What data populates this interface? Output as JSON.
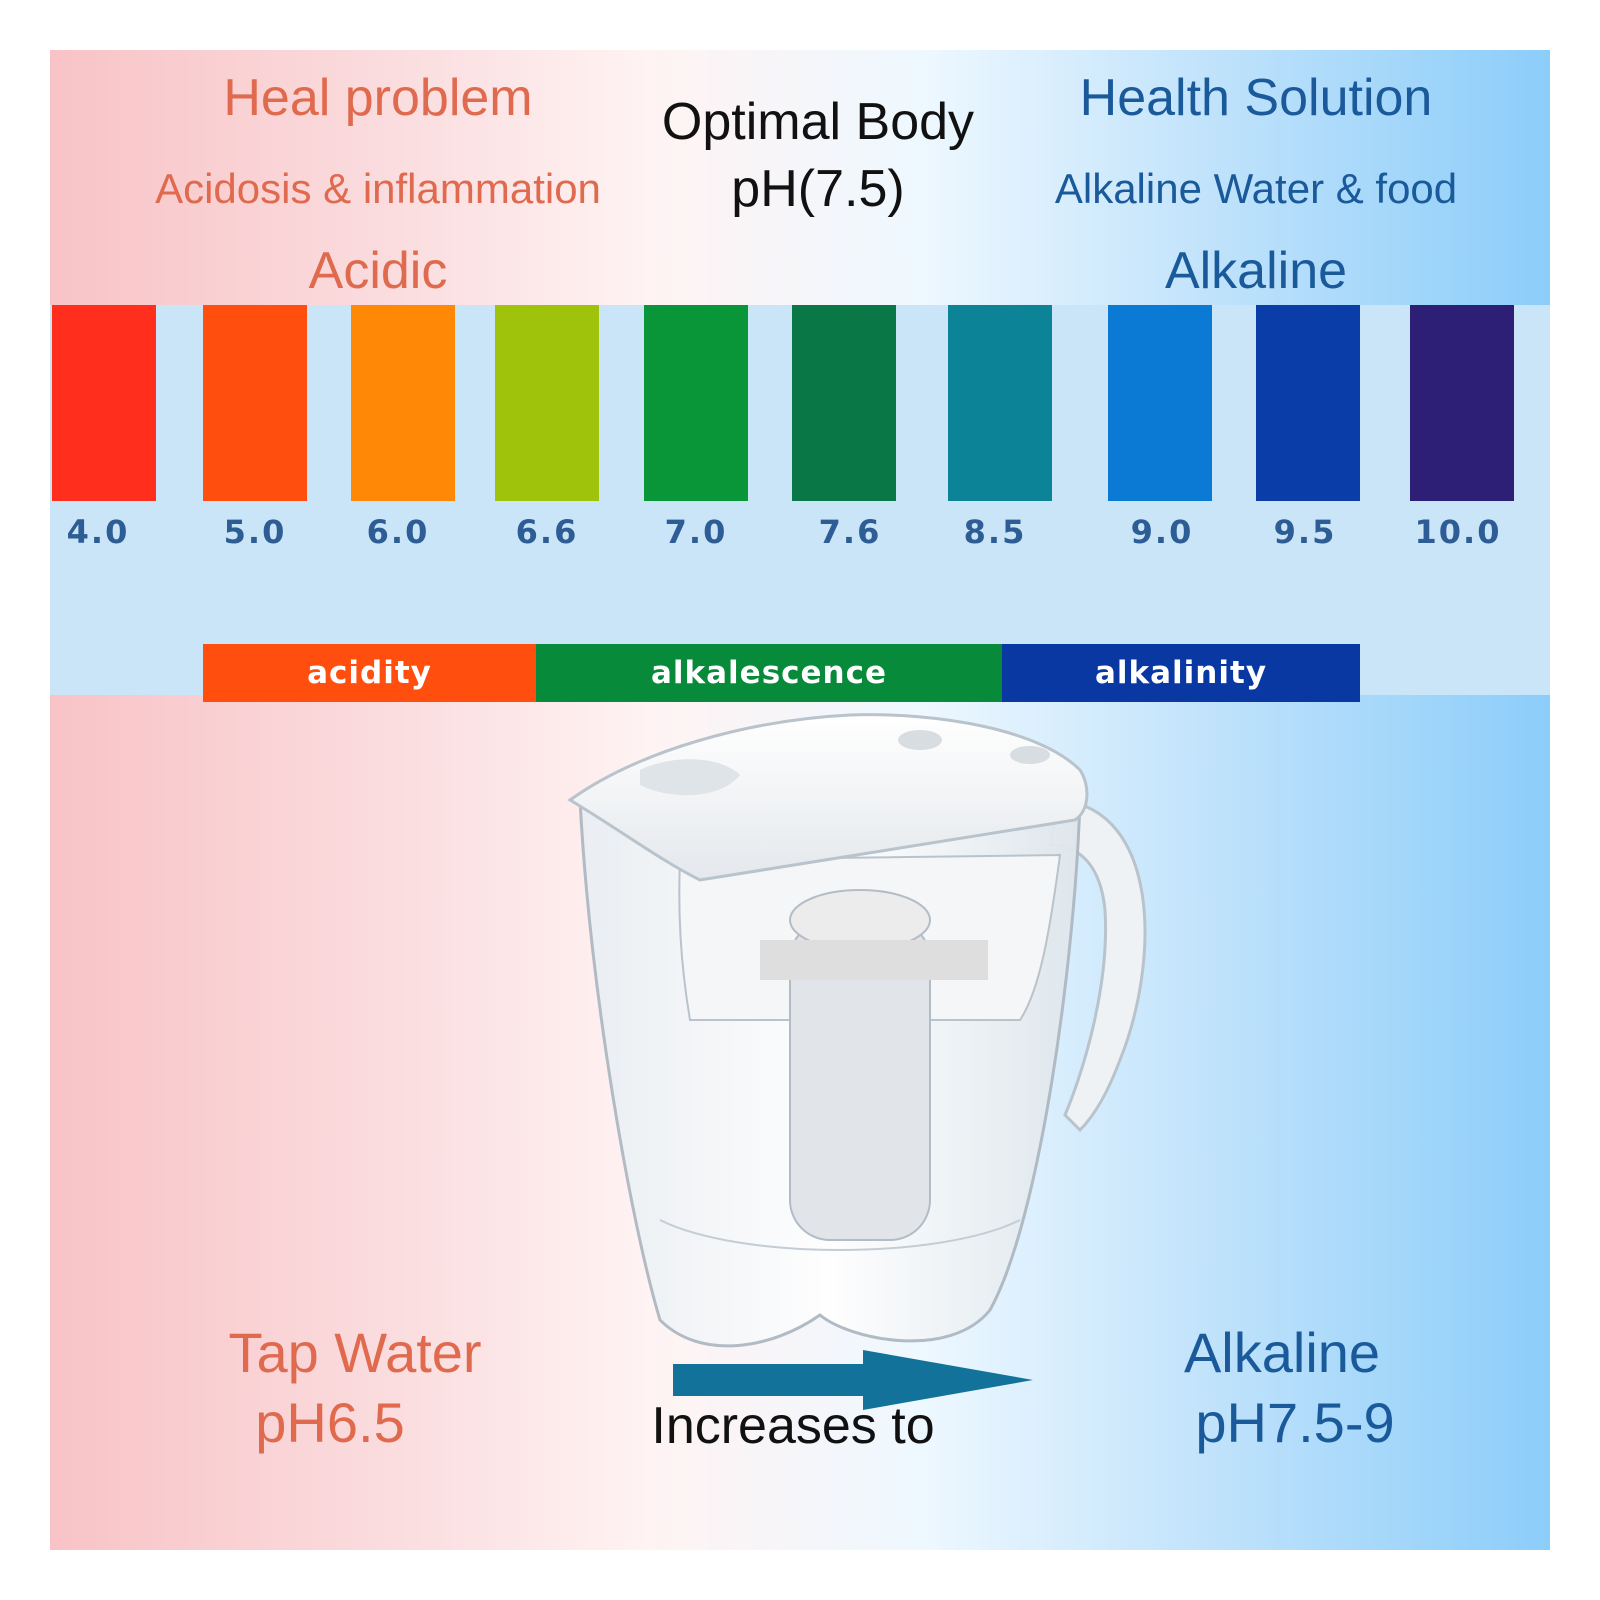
{
  "header": {
    "left_title": "Heal problem",
    "left_subtitle": "Acidosis & inflammation",
    "center_line1": "Optimal Body",
    "center_line2": "pH(7.5)",
    "right_title": "Health Solution",
    "right_subtitle": "Alkaline Water & food",
    "acidic_label": "Acidic",
    "alkaline_label": "Alkaline"
  },
  "scale": {
    "items": [
      {
        "value": "4.0",
        "color": "#ff2e1d"
      },
      {
        "value": "5.0",
        "color": "#ff4e0d"
      },
      {
        "value": "6.0",
        "color": "#ff8807"
      },
      {
        "value": "6.6",
        "color": "#9fc20a"
      },
      {
        "value": "7.0",
        "color": "#089639"
      },
      {
        "value": "7.6",
        "color": "#097746"
      },
      {
        "value": "8.5",
        "color": "#0d8398"
      },
      {
        "value": "9.0",
        "color": "#0b7ad4"
      },
      {
        "value": "9.5",
        "color": "#0a3da8"
      },
      {
        "value": "10.0",
        "color": "#2e1f76"
      }
    ],
    "bands": [
      {
        "label": "acidity",
        "color": "#ff4e0d"
      },
      {
        "label": "alkalescence",
        "color": "#078a39"
      },
      {
        "label": "alkalinity",
        "color": "#0a38a3"
      }
    ]
  },
  "footer": {
    "left_line1": "Tap Water",
    "left_line2": "pH6.5",
    "center_text": "Increases to",
    "right_line1": "Alkaline",
    "right_line2": "pH7.5-9",
    "arrow_color": "#12729a"
  }
}
